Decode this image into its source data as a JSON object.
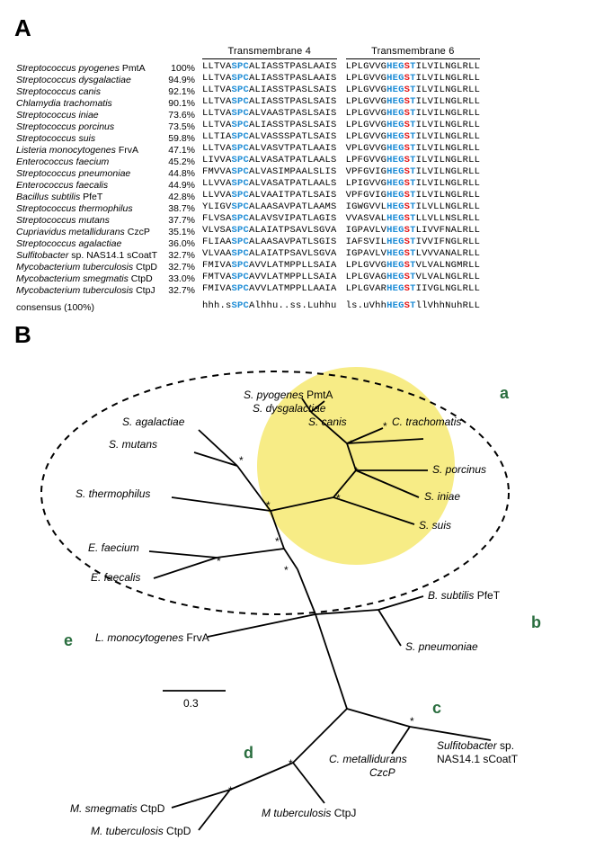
{
  "panelA": {
    "label": "A",
    "headers": {
      "tm4": "Transmembrane 4",
      "tm6": "Transmembrane 6"
    },
    "consensus_label": "consensus (100%)",
    "rows": [
      {
        "name": "Streptococcus pyogenes",
        "suffix": "PmtA",
        "pct": "100%",
        "tm4": [
          "LLTVA",
          "SPC",
          "ALIASSTPASLAAIS"
        ],
        "tm6": [
          "LPLGVVG",
          "HEG",
          "S",
          "T",
          "ILVILNGLRLL"
        ]
      },
      {
        "name": "Streptococcus dysgalactiae",
        "suffix": "",
        "pct": "94.9%",
        "tm4": [
          "LLTVA",
          "SPC",
          "ALIASSTPASLAAIS"
        ],
        "tm6": [
          "LPLGVVG",
          "HEG",
          "S",
          "T",
          "ILVILNGLRLL"
        ]
      },
      {
        "name": "Streptococcus canis",
        "suffix": "",
        "pct": "92.1%",
        "tm4": [
          "LLTVA",
          "SPC",
          "ALIASSTPASLSAIS"
        ],
        "tm6": [
          "LPLGVVG",
          "HEG",
          "S",
          "T",
          "ILVILNGLRLL"
        ]
      },
      {
        "name": "Chlamydia trachomatis",
        "suffix": "",
        "pct": "90.1%",
        "tm4": [
          "LLTVA",
          "SPC",
          "ALIASSTPASLSAIS"
        ],
        "tm6": [
          "LPLGVVG",
          "HEG",
          "S",
          "T",
          "ILVILNGLRLL"
        ]
      },
      {
        "name": "Streptococcus iniae",
        "suffix": "",
        "pct": "73.6%",
        "tm4": [
          "LLTVA",
          "SPC",
          "ALVAASTPASLSAIS"
        ],
        "tm6": [
          "LPLGVVG",
          "HEG",
          "S",
          "T",
          "ILVILNGLRLL"
        ]
      },
      {
        "name": "Streptococcus porcinus",
        "suffix": "",
        "pct": "73.5%",
        "tm4": [
          "LLTVA",
          "SPC",
          "ALIASSTPASLSAIS"
        ],
        "tm6": [
          "LPLGVVG",
          "HEG",
          "S",
          "T",
          "ILVILNGLRLL"
        ]
      },
      {
        "name": "Streptococcus suis",
        "suffix": "",
        "pct": "59.8%",
        "tm4": [
          "LLTIA",
          "SPC",
          "ALVASSSPATLSAIS"
        ],
        "tm6": [
          "LPLGVVG",
          "HEG",
          "S",
          "T",
          "ILVILNGLRLL"
        ]
      },
      {
        "name": "Listeria monocytogenes",
        "suffix": "FrvA",
        "pct": "47.1%",
        "tm4": [
          "LLTVA",
          "SPC",
          "ALVASVTPATLAAIS"
        ],
        "tm6": [
          "VPLGVVG",
          "HEG",
          "S",
          "T",
          "ILVILNGLRLL"
        ]
      },
      {
        "name": "Enterococcus faecium",
        "suffix": "",
        "pct": "45.2%",
        "tm4": [
          "LIVVA",
          "SPC",
          "ALVASATPATLAALS"
        ],
        "tm6": [
          "LPFGVVG",
          "HEG",
          "S",
          "T",
          "ILVILNGLRLL"
        ]
      },
      {
        "name": "Streptococcus pneumoniae",
        "suffix": "",
        "pct": "44.8%",
        "tm4": [
          "FMVVA",
          "SPC",
          "ALVASIMPAALSLIS"
        ],
        "tm6": [
          "VPFGVIG",
          "HEG",
          "S",
          "T",
          "ILVILNGLRLL"
        ]
      },
      {
        "name": "Enterococcus faecalis",
        "suffix": "",
        "pct": "44.9%",
        "tm4": [
          "LLVVA",
          "SPC",
          "ALVASATPATLAALS"
        ],
        "tm6": [
          "LPIGVVG",
          "HEG",
          "S",
          "T",
          "ILVILNGLRLL"
        ]
      },
      {
        "name": "Bacillus subtilis",
        "suffix": "PfeT",
        "pct": "42.8%",
        "tm4": [
          "LLVVA",
          "SPC",
          "ALVAAITPATLSAIS"
        ],
        "tm6": [
          "VPFGVIG",
          "HEG",
          "S",
          "T",
          "ILVILNGLRLL"
        ]
      },
      {
        "name": "Streptococcus thermophilus",
        "suffix": "",
        "pct": "38.7%",
        "tm4": [
          "YLIGV",
          "SPC",
          "ALAASAVPATLAAMS"
        ],
        "tm6": [
          "IGWGVVL",
          "HEG",
          "S",
          "T",
          "ILVLLNGLRLL"
        ]
      },
      {
        "name": "Streptococcus mutans",
        "suffix": "",
        "pct": "37.7%",
        "tm4": [
          "FLVSA",
          "SPC",
          "ALAVSVIPATLAGIS"
        ],
        "tm6": [
          "VVASVAL",
          "HEG",
          "S",
          "T",
          "LLVLLNSLRLL"
        ]
      },
      {
        "name": "Cupriavidus metallidurans",
        "suffix": "CzcP",
        "pct": "35.1%",
        "tm4": [
          "VLVSA",
          "SPC",
          "ALAIATPSAVLSGVA"
        ],
        "tm6": [
          "IGPAVLV",
          "HEG",
          "S",
          "T",
          "LIVVFNALRLL"
        ]
      },
      {
        "name": "Streptococcus agalactiae",
        "suffix": "",
        "pct": "36.0%",
        "tm4": [
          "FLIAA",
          "SPC",
          "ALAASAVPATLSGIS"
        ],
        "tm6": [
          "IAFSVIL",
          "HEG",
          "S",
          "T",
          "IVVIFNGLRLL"
        ]
      },
      {
        "name": "Sulfitobacter",
        "name2": " sp. NAS14.1",
        "suffix": "sCoatT",
        "pct": "32.7%",
        "tm4": [
          "VLVAA",
          "SPC",
          "ALAIATPSAVLSGVA"
        ],
        "tm6": [
          "IGPAVLV",
          "HEG",
          "S",
          "T",
          "LVVVANALRLL"
        ]
      },
      {
        "name": "Mycobacterium tuberculosis",
        "suffix": "CtpD",
        "pct": "32.7%",
        "tm4": [
          "FMIVA",
          "SPC",
          "AVVLATMPPLLSAIA"
        ],
        "tm6": [
          "LPLGVVG",
          "HEG",
          "S",
          "T",
          "VLVALNGMRLL"
        ]
      },
      {
        "name": "Mycobacterium smegmatis",
        "suffix": "CtpD",
        "pct": "33.0%",
        "tm4": [
          "FMTVA",
          "SPC",
          "AVVLATMPPLLSAIA"
        ],
        "tm6": [
          "LPLGVAG",
          "HEG",
          "S",
          "T",
          "VLVALNGLRLL"
        ]
      },
      {
        "name": "Mycobacterium tuberculosis",
        "suffix": "CtpJ",
        "pct": "32.7%",
        "tm4": [
          "FMIVA",
          "SPC",
          "AVVLATMPPLLAAIA"
        ],
        "tm6": [
          "LPLGVAR",
          "HEG",
          "S",
          "T",
          "IIVGLNGLRLL"
        ]
      }
    ],
    "consensus": {
      "tm4": [
        "hhh.s",
        "SPC",
        "Alhhu..ss.Luhhu"
      ],
      "tm6": [
        "ls.uVhh",
        "HEG",
        "S",
        "T",
        "llVhhNuhRLL"
      ]
    }
  },
  "panelB": {
    "label": "B",
    "scale_label": "0.3",
    "clade_labels": {
      "a": "a",
      "b": "b",
      "c": "c",
      "d": "d",
      "e": "e"
    },
    "taxa": {
      "s_agalactiae": "S. agalactiae",
      "s_mutans": "S. mutans",
      "s_thermophilus": "S. thermophilus",
      "e_faecium": "E. faecium",
      "e_faecalis": "E. faecalis",
      "l_mono": "L. monocytogenes",
      "l_mono_suf": "FrvA",
      "s_pyogenes": "S. pyogenes",
      "s_pyogenes_suf": "PmtA",
      "s_dysgalactiae": "S. dysgalactiae",
      "s_canis": "S. canis",
      "c_trachomatis": "C. trachomatis",
      "s_porcinus": "S. porcinus",
      "s_iniae": "S. iniae",
      "s_suis": "S. suis",
      "b_subtilis": "B. subtilis",
      "b_subtilis_suf": "PfeT",
      "s_pneumoniae": "S. pneumoniae",
      "c_metallidurans": "C. metallidurans",
      "c_metallidurans_suf": "CzcP",
      "sulfitobacter": "Sulfitobacter",
      "sulfitobacter_suf": "sp.\nNAS14.1 sCoatT",
      "m_smegmatis": "M. smegmatis",
      "m_smegmatis_suf": "CtpD",
      "m_tuberculosis_d": "M. tuberculosis",
      "m_tuberculosis_d_suf": "CtpD",
      "m_tuberculosis_j": "M tuberculosis",
      "m_tuberculosis_j_suf": "CtpJ"
    },
    "colors": {
      "highlight": "#f7ec86",
      "branch": "#000000",
      "clade_label": "#2a6e3f"
    }
  }
}
